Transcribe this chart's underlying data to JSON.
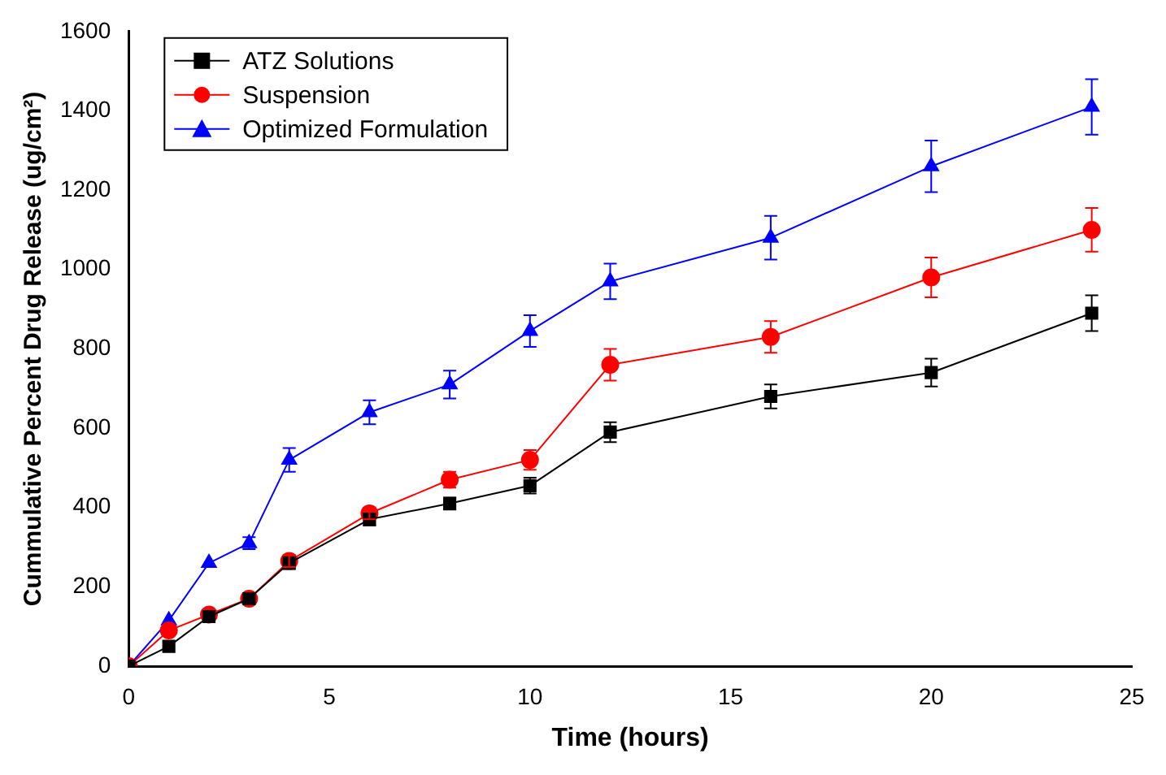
{
  "chart_data": {
    "type": "line",
    "xlabel": "Time (hours)",
    "ylabel": "Cummulative Percent Drug Release (ug/cm²)",
    "x": [
      0,
      1,
      2,
      3,
      4,
      6,
      8,
      10,
      12,
      16,
      20,
      24
    ],
    "series": [
      {
        "name": "ATZ Solutions",
        "color": "#000000",
        "marker": "square",
        "values": [
          0,
          50,
          125,
          170,
          260,
          370,
          410,
          455,
          590,
          680,
          740,
          890
        ],
        "errors": [
          null,
          null,
          null,
          null,
          15,
          15,
          15,
          20,
          25,
          30,
          35,
          45
        ]
      },
      {
        "name": "Suspension",
        "color": "#ff0000",
        "marker": "circle",
        "values": [
          0,
          90,
          130,
          170,
          265,
          385,
          470,
          520,
          760,
          830,
          980,
          1100
        ],
        "errors": [
          null,
          null,
          null,
          null,
          15,
          15,
          20,
          25,
          40,
          40,
          50,
          55
        ]
      },
      {
        "name": "Optimized Formulation",
        "color": "#0000ff",
        "marker": "triangle",
        "values": [
          0,
          115,
          260,
          310,
          520,
          640,
          710,
          845,
          970,
          1080,
          1260,
          1410
        ],
        "errors": [
          null,
          null,
          null,
          15,
          30,
          30,
          35,
          40,
          45,
          55,
          65,
          70
        ]
      }
    ],
    "xlim": [
      0,
      25
    ],
    "xticks": [
      0,
      5,
      10,
      15,
      20,
      25
    ],
    "ylim": [
      0,
      1600
    ],
    "yticks": [
      0,
      200,
      400,
      600,
      800,
      1000,
      1200,
      1400,
      1600
    ],
    "grid": false,
    "legend": "top left",
    "line_style": "solid"
  }
}
